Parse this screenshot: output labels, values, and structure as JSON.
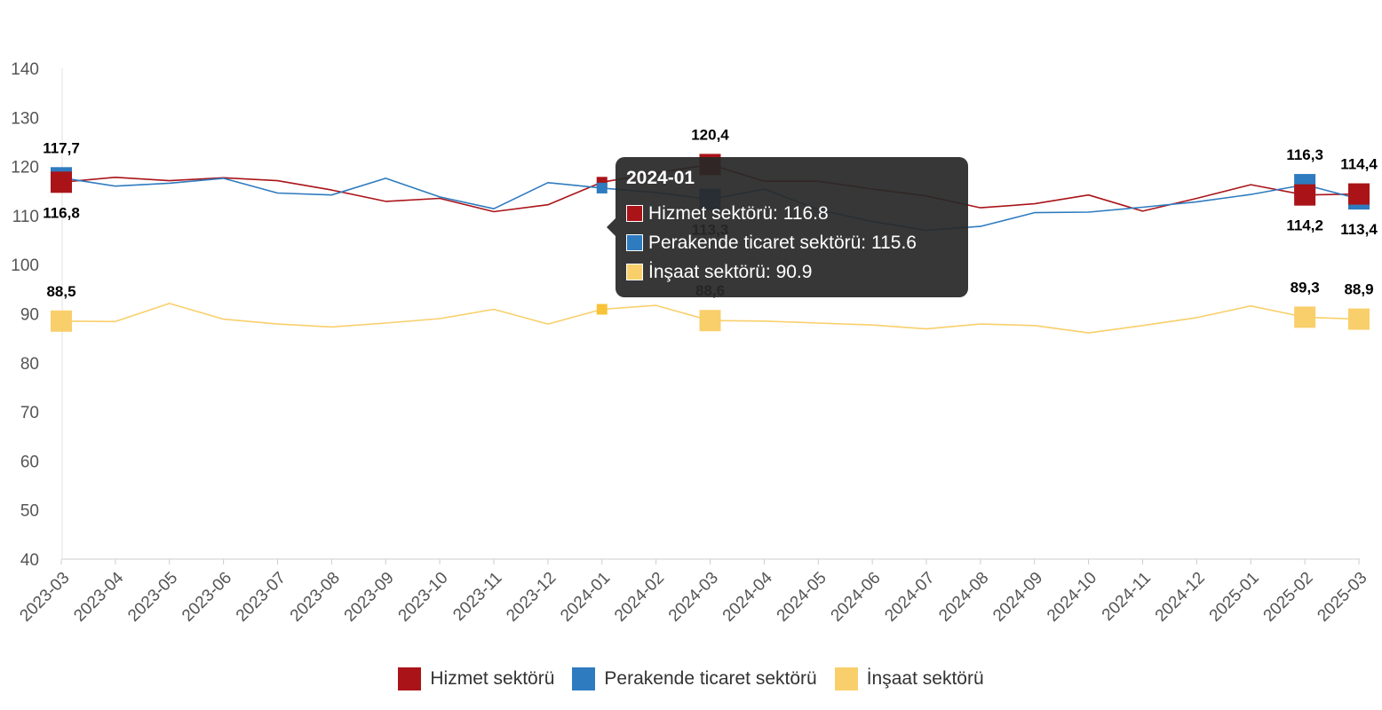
{
  "chart_data": {
    "type": "line",
    "categories": [
      "2023-03",
      "2023-04",
      "2023-05",
      "2023-06",
      "2023-07",
      "2023-08",
      "2023-09",
      "2023-10",
      "2023-11",
      "2023-12",
      "2024-01",
      "2024-02",
      "2024-03",
      "2024-04",
      "2024-05",
      "2024-06",
      "2024-07",
      "2024-08",
      "2024-09",
      "2024-10",
      "2024-11",
      "2024-12",
      "2025-01",
      "2025-02",
      "2025-03"
    ],
    "ylim": [
      40,
      140
    ],
    "yticks": [
      40,
      50,
      60,
      70,
      80,
      90,
      100,
      110,
      120,
      130,
      140
    ],
    "series": [
      {
        "name": "Hizmet sektörü",
        "color": "#aa1419",
        "values": [
          116.8,
          117.8,
          117.1,
          117.7,
          117.1,
          115.2,
          112.9,
          113.5,
          110.8,
          112.2,
          116.8,
          118.7,
          120.4,
          117.0,
          117.0,
          115.4,
          114.0,
          111.6,
          112.4,
          114.2,
          110.9,
          113.5,
          116.3,
          114.2,
          114.4
        ]
      },
      {
        "name": "Perakende ticaret sektörü",
        "color": "#2e7bbf",
        "values": [
          117.7,
          116.0,
          116.6,
          117.6,
          114.6,
          114.2,
          117.6,
          113.8,
          111.4,
          116.7,
          115.6,
          114.7,
          113.3,
          115.4,
          111.2,
          108.8,
          107.0,
          107.8,
          110.6,
          110.7,
          111.7,
          112.8,
          114.3,
          116.3,
          113.4
        ]
      },
      {
        "name": "İnşaat sektörü",
        "color": "#f9cf6b",
        "values": [
          88.5,
          88.4,
          92.1,
          88.9,
          87.9,
          87.3,
          88.1,
          89.0,
          90.9,
          87.9,
          90.9,
          91.7,
          88.6,
          88.5,
          88.1,
          87.7,
          86.9,
          87.9,
          87.6,
          86.1,
          87.6,
          89.2,
          91.6,
          89.3,
          88.9
        ]
      }
    ],
    "highlights": [
      {
        "series": 0,
        "index": 0,
        "label": "116,8",
        "pos": "below"
      },
      {
        "series": 0,
        "index": 12,
        "label": "120,4",
        "pos": "above"
      },
      {
        "series": 0,
        "index": 23,
        "label": "114,2",
        "pos": "below"
      },
      {
        "series": 0,
        "index": 24,
        "label": "114,4",
        "pos": "above"
      },
      {
        "series": 1,
        "index": 0,
        "label": "117,7",
        "pos": "above"
      },
      {
        "series": 1,
        "index": 12,
        "label": "113,3",
        "pos": "below"
      },
      {
        "series": 1,
        "index": 23,
        "label": "116,3",
        "pos": "above"
      },
      {
        "series": 1,
        "index": 24,
        "label": "113,4",
        "pos": "below"
      },
      {
        "series": 2,
        "index": 0,
        "label": "88,5",
        "pos": "above"
      },
      {
        "series": 2,
        "index": 12,
        "label": "88,6",
        "pos": "above"
      },
      {
        "series": 2,
        "index": 23,
        "label": "89,3",
        "pos": "above"
      },
      {
        "series": 2,
        "index": 24,
        "label": "88,9",
        "pos": "above"
      }
    ],
    "hover_index": 10,
    "grid": false,
    "legend_position": "bottom"
  },
  "tooltip": {
    "title": "2024-01",
    "rows": [
      {
        "text": "Hizmet sektörü: 116.8",
        "color": "#aa1419"
      },
      {
        "text": "Perakende ticaret sektörü: 115.6",
        "color": "#2e7bbf"
      },
      {
        "text": "İnşaat sektörü: 90.9",
        "color": "#f9cf6b"
      }
    ]
  },
  "legend": {
    "items": [
      {
        "label": "Hizmet sektörü",
        "color": "#aa1419"
      },
      {
        "label": "Perakende ticaret sektörü",
        "color": "#2e7bbf"
      },
      {
        "label": "İnşaat sektörü",
        "color": "#f9cf6b"
      }
    ]
  }
}
